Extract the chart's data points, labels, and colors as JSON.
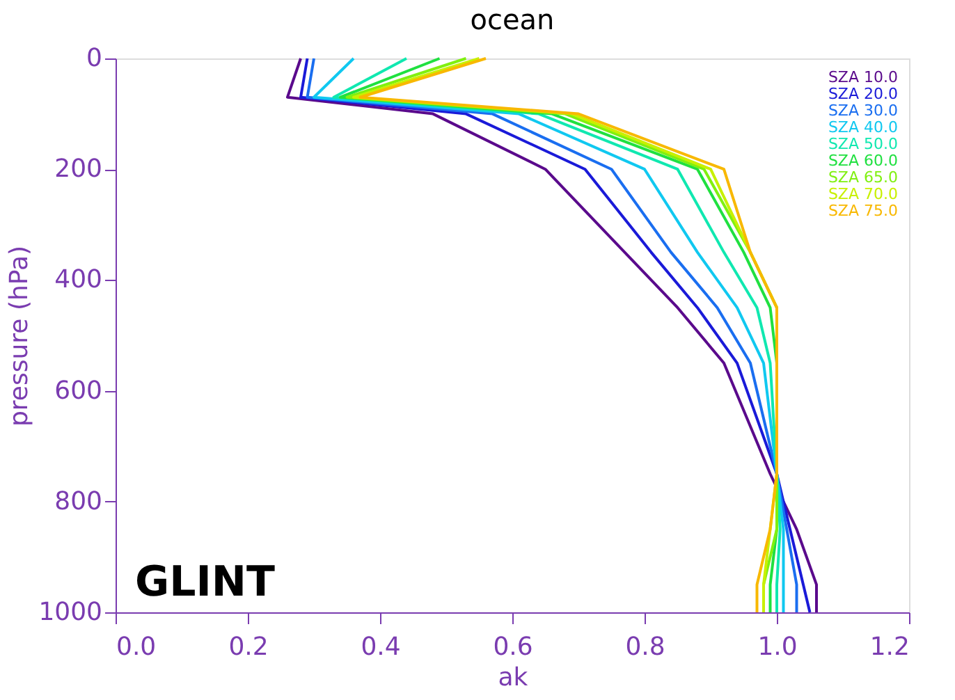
{
  "chart_data": {
    "type": "line",
    "title": "ocean",
    "xlabel": "ak",
    "ylabel": "pressure (hPa)",
    "xlim": [
      0.0,
      1.2
    ],
    "xticks": [
      {
        "value": 0,
        "label": "0.0"
      },
      {
        "value": 0.2,
        "label": "0.2"
      },
      {
        "value": 0.4,
        "label": "0.4"
      },
      {
        "value": 0.6,
        "label": "0.6"
      },
      {
        "value": 0.8,
        "label": "0.8"
      },
      {
        "value": 1.0,
        "label": "1.0"
      },
      {
        "value": 1.2,
        "label": "1.2"
      }
    ],
    "ylim": [
      1000,
      0
    ],
    "yticks": [
      0,
      200,
      400,
      600,
      800,
      1000
    ],
    "grid": false,
    "legend": "top right",
    "marker": "none",
    "line_style": "solid",
    "annotations": [
      "GLINT"
    ],
    "series": [
      {
        "name": "SZA 10.0",
        "color": "#5a0a8c",
        "x": [
          0.28,
          0.26,
          0.48,
          0.65,
          0.77,
          0.85,
          0.92,
          0.99,
          1.03,
          1.06,
          1.06
        ],
        "values": [
          0,
          70,
          100,
          200,
          350,
          450,
          550,
          750,
          850,
          950,
          1000
        ]
      },
      {
        "name": "SZA 20.0",
        "color": "#1a1ad8",
        "x": [
          0.29,
          0.28,
          0.53,
          0.71,
          0.81,
          0.88,
          0.94,
          1.0,
          1.02,
          1.04,
          1.05
        ],
        "values": [
          0,
          70,
          100,
          200,
          350,
          450,
          550,
          750,
          850,
          950,
          1000
        ]
      },
      {
        "name": "SZA 30.0",
        "color": "#1a6ef0",
        "x": [
          0.3,
          0.29,
          0.57,
          0.75,
          0.84,
          0.91,
          0.96,
          1.0,
          1.015,
          1.03,
          1.03
        ],
        "values": [
          0,
          70,
          100,
          200,
          350,
          450,
          550,
          750,
          850,
          950,
          1000
        ]
      },
      {
        "name": "SZA 40.0",
        "color": "#10c8f0",
        "x": [
          0.36,
          0.3,
          0.61,
          0.8,
          0.88,
          0.94,
          0.98,
          1.0,
          1.01,
          1.01,
          1.01
        ],
        "values": [
          0,
          70,
          100,
          200,
          350,
          450,
          550,
          750,
          850,
          950,
          1000
        ]
      },
      {
        "name": "SZA 50.0",
        "color": "#10e8b0",
        "x": [
          0.44,
          0.33,
          0.64,
          0.85,
          0.92,
          0.97,
          0.99,
          1.0,
          1.005,
          1.0,
          1.0
        ],
        "values": [
          0,
          70,
          100,
          200,
          350,
          450,
          550,
          750,
          850,
          950,
          1000
        ]
      },
      {
        "name": "SZA 60.0",
        "color": "#20e040",
        "x": [
          0.49,
          0.34,
          0.66,
          0.88,
          0.95,
          0.99,
          1.0,
          1.0,
          1.0,
          0.99,
          0.99
        ],
        "values": [
          0,
          70,
          100,
          200,
          350,
          450,
          550,
          750,
          850,
          950,
          1000
        ]
      },
      {
        "name": "SZA 65.0",
        "color": "#80f010",
        "x": [
          0.53,
          0.35,
          0.68,
          0.89,
          0.96,
          1.0,
          1.0,
          1.0,
          1.0,
          0.98,
          0.98
        ],
        "values": [
          0,
          70,
          100,
          200,
          350,
          450,
          550,
          750,
          850,
          950,
          1000
        ]
      },
      {
        "name": "SZA 70.0",
        "color": "#c8f000",
        "x": [
          0.55,
          0.36,
          0.69,
          0.9,
          0.96,
          1.0,
          1.0,
          1.0,
          0.99,
          0.98,
          0.98
        ],
        "values": [
          0,
          70,
          100,
          200,
          350,
          450,
          550,
          750,
          850,
          950,
          1000
        ]
      },
      {
        "name": "SZA 75.0",
        "color": "#f8b800",
        "x": [
          0.56,
          0.37,
          0.7,
          0.92,
          0.96,
          1.0,
          1.0,
          1.0,
          0.99,
          0.97,
          0.97
        ],
        "values": [
          0,
          70,
          100,
          200,
          350,
          450,
          550,
          750,
          850,
          950,
          1000
        ]
      }
    ]
  }
}
